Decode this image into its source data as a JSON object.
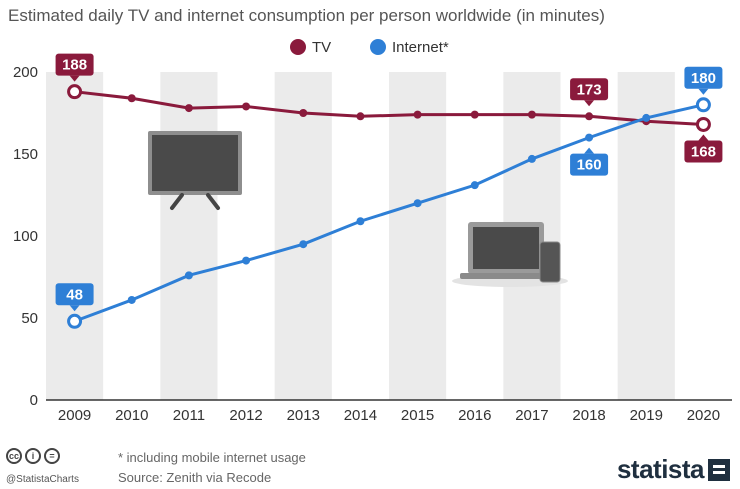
{
  "title": "Estimated daily TV and internet consumption per person worldwide (in minutes)",
  "footer": {
    "note": "* including mobile internet usage",
    "source": "Source: Zenith via Recode",
    "handle": "@StatistaCharts",
    "brand": "statista"
  },
  "colors": {
    "tv": "#8a1a3c",
    "internet": "#2e7fd6",
    "band": "#ebebeb",
    "axis": "#333333"
  },
  "chart_data": {
    "type": "line",
    "x": [
      2009,
      2010,
      2011,
      2012,
      2013,
      2014,
      2015,
      2016,
      2017,
      2018,
      2019,
      2020
    ],
    "ylim": [
      0,
      200
    ],
    "yticks": [
      0,
      50,
      100,
      150,
      200
    ],
    "legend_position": "top-center",
    "series": [
      {
        "name": "TV",
        "values": [
          188,
          184,
          178,
          179,
          175,
          173,
          174,
          174,
          174,
          173,
          170,
          168
        ]
      },
      {
        "name": "Internet*",
        "values": [
          48,
          61,
          76,
          85,
          95,
          109,
          120,
          131,
          147,
          160,
          172,
          180
        ]
      }
    ],
    "data_labels": [
      {
        "series": 0,
        "index": 0,
        "text": "188"
      },
      {
        "series": 0,
        "index": 9,
        "text": "173"
      },
      {
        "series": 0,
        "index": 11,
        "text": "168"
      },
      {
        "series": 1,
        "index": 0,
        "text": "48"
      },
      {
        "series": 1,
        "index": 9,
        "text": "160"
      },
      {
        "series": 1,
        "index": 11,
        "text": "180"
      }
    ],
    "icons": [
      "tv-icon",
      "laptop-phone-icon"
    ]
  }
}
